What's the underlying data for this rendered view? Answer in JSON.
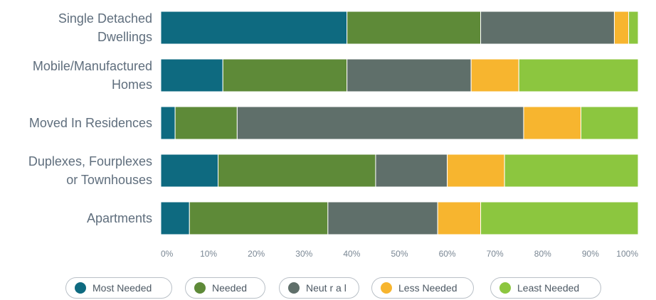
{
  "chart_data": {
    "type": "bar",
    "orientation": "horizontal",
    "stacked": true,
    "categories": [
      [
        "Single Detached",
        "Dwellings"
      ],
      [
        "Mobile/Manufactured",
        "Homes"
      ],
      [
        "Moved In Residences"
      ],
      [
        "Duplexes, Fourplexes",
        "or Townhouses"
      ],
      [
        "Apartments"
      ]
    ],
    "series": [
      {
        "name": "Most Needed",
        "color": "#0e6a80",
        "values": [
          39,
          13,
          3,
          12,
          6
        ]
      },
      {
        "name": "Needed",
        "color": "#5e8a38",
        "values": [
          28,
          26,
          13,
          33,
          29
        ]
      },
      {
        "name": "Neut r a l",
        "color": "#5f6f6a",
        "values": [
          28,
          26,
          60,
          15,
          23
        ]
      },
      {
        "name": "Less Needed",
        "color": "#f7b52f",
        "values": [
          3,
          10,
          12,
          12,
          9
        ]
      },
      {
        "name": "Least Needed",
        "color": "#8cc63f",
        "values": [
          2,
          25,
          12,
          28,
          33
        ]
      }
    ],
    "x_ticks": [
      "0%",
      "10%",
      "20%",
      "30%",
      "40%",
      "50%",
      "60%",
      "70%",
      "80%",
      "90%",
      "100%"
    ],
    "xlim": [
      0,
      100
    ],
    "legend_position": "bottom",
    "grid": false
  }
}
